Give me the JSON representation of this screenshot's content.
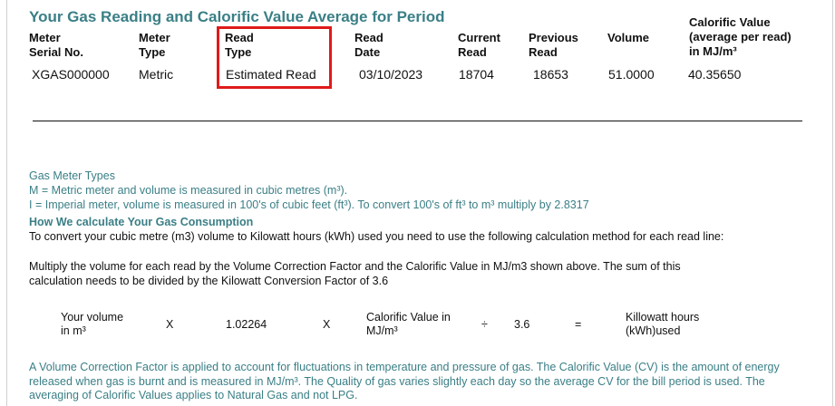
{
  "title": "Your Gas Reading and Calorific Value Average for Period",
  "table": {
    "headers": {
      "meter_serial": [
        "Meter",
        "Serial No."
      ],
      "meter_type": [
        "Meter",
        "Type"
      ],
      "read_type": [
        "Read",
        "Type"
      ],
      "read_date": [
        "Read",
        "Date"
      ],
      "current_read": [
        "Current",
        "Read"
      ],
      "previous_read": [
        "Previous",
        "Read"
      ],
      "volume": [
        "Volume"
      ],
      "calorific_value": [
        "Calorific Value",
        "(average per read)",
        "in MJ/m³"
      ]
    },
    "row": {
      "meter_serial": "XGAS000000",
      "meter_type": "Metric",
      "read_type": "Estimated Read",
      "read_date": "03/10/2023",
      "current_read": "18704",
      "previous_read": "18653",
      "volume": "51.0000",
      "calorific_value": "40.35650"
    },
    "highlight_color": "#e01a1a"
  },
  "meter_types": {
    "heading": "Gas Meter Types",
    "metric": "M = Metric meter and volume is measured in cubic metres (m³).",
    "imperial": "I = Imperial meter, volume is measured in 100's of cubic feet (ft³). To convert 100's of ft³ to m³ multiply by 2.8317"
  },
  "calculation": {
    "heading": "How We calculate Your Gas Consumption",
    "intro": "To convert your cubic metre (m3) volume to Kilowatt hours (kWh) used you need to use the following calculation method for each read line:",
    "para_line1": "Multiply the volume for each read by the Volume Correction Factor and the Calorific Value in MJ/m3 shown above. The sum of this",
    "para_line2": "calculation needs to be divided by the Kilowatt Conversion Factor of 3.6",
    "formula": {
      "volume_line1": "Your volume",
      "volume_line2": "in m³",
      "times1": "X",
      "correction_factor": "1.02264",
      "times2": "X",
      "cv_line1": "Calorific Value in",
      "cv_line2": "MJ/m³",
      "divide": "÷",
      "conversion_factor": "3.6",
      "equals": "=",
      "result_line1": "Killowatt hours",
      "result_line2": "(kWh)used"
    }
  },
  "footnote": "A Volume Correction Factor is applied to account for fluctuations in temperature and pressure of gas. The Calorific Value (CV) is the amount of energy released when gas is burnt and is measured in MJ/m³. The Quality of gas varies slightly each day so the average CV for the bill period is used. The averaging of Calorific Values applies to Natural Gas and not LPG.",
  "colors": {
    "accent_teal": "#3a7f86",
    "text": "#111111",
    "highlight_red": "#e01a1a"
  }
}
